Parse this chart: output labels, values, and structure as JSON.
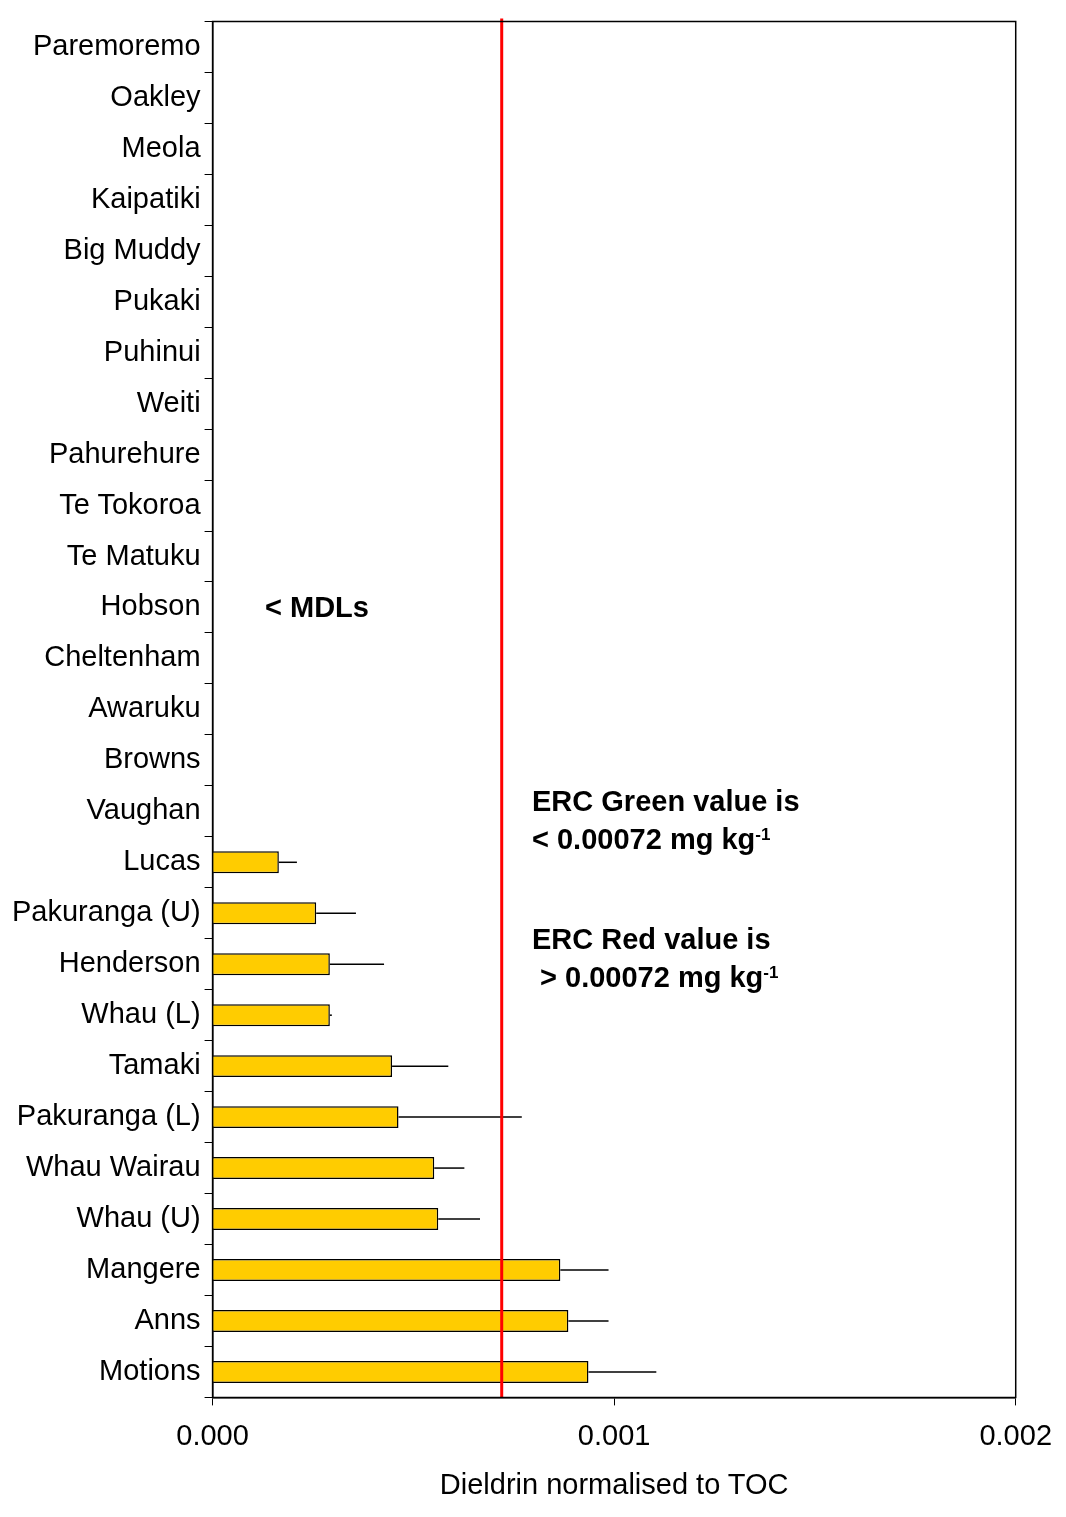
{
  "chart_data": {
    "type": "bar",
    "orientation": "horizontal",
    "xlabel": "Dieldrin normalised to TOC",
    "categories": [
      "Paremoremo",
      "Oakley",
      "Meola",
      "Kaipatiki",
      "Big Muddy",
      "Pukaki",
      "Puhinui",
      "Weiti",
      "Pahurehure",
      "Te Tokoroa",
      "Te Matuku",
      "Hobson",
      "Cheltenham",
      "Awaruku",
      "Browns",
      "Vaughan",
      "Lucas",
      "Pakuranga (U)",
      "Henderson",
      "Whau (L)",
      "Tamaki",
      "Pakuranga (L)",
      "Whau Wairau",
      "Whau (U)",
      "Mangere",
      "Anns",
      "Motions"
    ],
    "values": [
      null,
      null,
      null,
      null,
      null,
      null,
      null,
      null,
      null,
      null,
      null,
      null,
      null,
      null,
      null,
      null,
      0.000165,
      0.000258,
      0.000292,
      0.000292,
      0.000447,
      0.000463,
      0.000552,
      0.000562,
      0.000866,
      0.000886,
      0.000936
    ],
    "errors": [
      null,
      null,
      null,
      null,
      null,
      null,
      null,
      null,
      null,
      null,
      null,
      null,
      null,
      null,
      null,
      null,
      [
        0.000165,
        0.00021
      ],
      [
        0.000258,
        0.000357
      ],
      [
        0.000292,
        0.000427
      ],
      [
        0.000292,
        0.000297
      ],
      [
        0.000447,
        0.000587
      ],
      [
        0.000463,
        0.00077
      ],
      [
        0.000552,
        0.000627
      ],
      [
        0.000562,
        0.000666
      ],
      [
        0.000866,
        0.000986
      ],
      [
        0.000886,
        0.000986
      ],
      [
        0.000936,
        0.001105
      ]
    ],
    "color": "#ffcc00",
    "xlim": [
      0,
      0.002
    ],
    "xticks": [
      {
        "value": 0,
        "label": "0.000"
      },
      {
        "value": 0.001,
        "label": "0.001"
      },
      {
        "value": 0.002,
        "label": "0.002"
      }
    ],
    "grid": false,
    "legend": false,
    "ref_lines": [
      {
        "axis": "x",
        "value": 0.00072,
        "color": "#ff0000"
      }
    ],
    "annotations": [
      "< MDLs",
      "ERC Green value is\n< 0.00072 mg kg$^{-1}$",
      "ERC Red value is\n > 0.00072 mg kg$^{-1}$"
    ]
  }
}
